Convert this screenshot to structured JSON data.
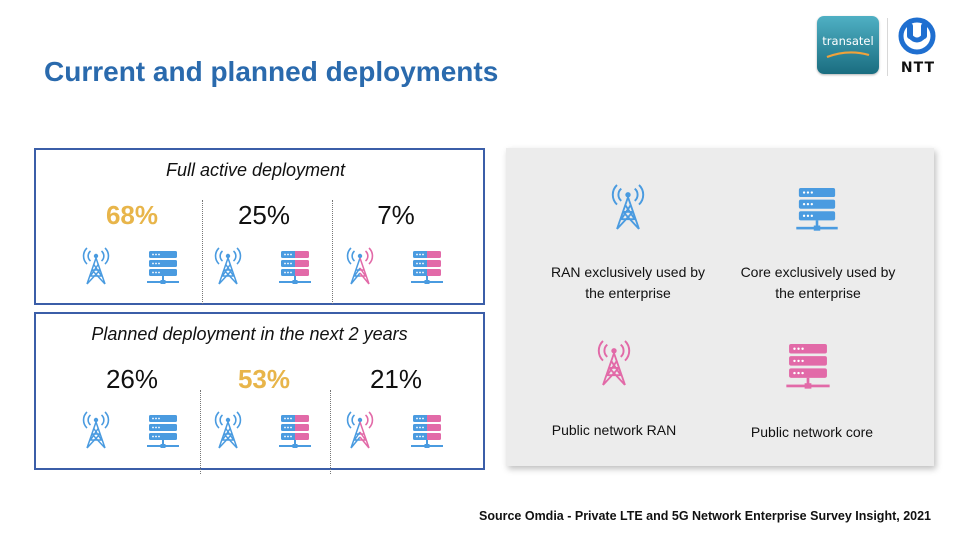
{
  "header": {
    "title": "Current and planned deployments"
  },
  "logos": {
    "transatel": "transatel",
    "ntt": "NTT"
  },
  "colors": {
    "accent": "#e8b54a",
    "blue_icon": "#4a9be0",
    "pink_icon": "#e26aa8",
    "border": "#3b5ea8"
  },
  "current": {
    "title": "Full active deployment",
    "columns": [
      {
        "pct": "68%",
        "highlight": true,
        "ran": "enterprise",
        "core": "enterprise"
      },
      {
        "pct": "25%",
        "highlight": false,
        "ran": "enterprise",
        "core": "mixed"
      },
      {
        "pct": "7%",
        "highlight": false,
        "ran": "mixed",
        "core": "mixed"
      }
    ]
  },
  "planned": {
    "title": "Planned deployment in the next 2 years",
    "columns": [
      {
        "pct": "26%",
        "highlight": false,
        "ran": "enterprise",
        "core": "enterprise"
      },
      {
        "pct": "53%",
        "highlight": true,
        "ran": "enterprise",
        "core": "mixed"
      },
      {
        "pct": "21%",
        "highlight": false,
        "ran": "mixed",
        "core": "mixed"
      }
    ]
  },
  "legend": {
    "ran_enterprise": {
      "line1": "RAN exclusively used by",
      "line2": "the enterprise",
      "icon": "tower-icon"
    },
    "core_enterprise": {
      "line1": "Core exclusively used by",
      "line2": "the enterprise",
      "icon": "server-icon"
    },
    "ran_public": {
      "line1": "Public network RAN",
      "icon": "tower-icon"
    },
    "core_public": {
      "line1": "Public network core",
      "icon": "server-icon"
    }
  },
  "footer": {
    "source": "Source Omdia - Private LTE and 5G Network Enterprise Survey Insight, 2021"
  }
}
